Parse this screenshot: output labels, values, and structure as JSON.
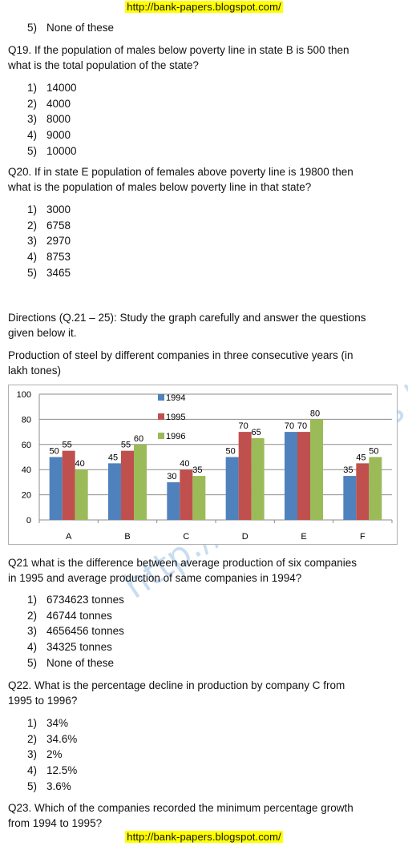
{
  "header_link": "http://bank-papers.blogspot.com/",
  "footer_link": "http://bank-papers.blogspot.com/",
  "watermark": "http://bank-papers.blogspot.com/",
  "q18_tail": {
    "num": "5)",
    "text": "None of these"
  },
  "q19": {
    "line1": "Q19. If the population of males below poverty line in state B is 500 then",
    "line2": "what is the total population of the state?",
    "options": [
      {
        "num": "1)",
        "text": "14000"
      },
      {
        "num": "2)",
        "text": "4000"
      },
      {
        "num": "3)",
        "text": "8000"
      },
      {
        "num": "4)",
        "text": "9000"
      },
      {
        "num": "5)",
        "text": "10000"
      }
    ]
  },
  "q20": {
    "line1": "Q20. If in state E population of females above poverty line is 19800 then",
    "line2": "what is the population of males below poverty line in that state?",
    "options": [
      {
        "num": "1)",
        "text": "3000"
      },
      {
        "num": "2)",
        "text": "6758"
      },
      {
        "num": "3)",
        "text": "2970"
      },
      {
        "num": "4)",
        "text": "8753"
      },
      {
        "num": "5)",
        "text": "3465"
      }
    ]
  },
  "directions": {
    "line1": "Directions (Q.21 – 25): Study the graph carefully and answer the questions",
    "line2": "given below it."
  },
  "chart_caption": {
    "line1": "Production of steel by different companies in three consecutive years (in",
    "line2": "lakh tones)"
  },
  "chart_data": {
    "type": "bar",
    "categories": [
      "A",
      "B",
      "C",
      "D",
      "E",
      "F"
    ],
    "series": [
      {
        "name": "1994",
        "values": [
          50,
          45,
          30,
          50,
          70,
          35
        ],
        "color": "#4f81bd"
      },
      {
        "name": "1995",
        "values": [
          55,
          55,
          40,
          70,
          70,
          45
        ],
        "color": "#c0504d"
      },
      {
        "name": "1996",
        "values": [
          40,
          60,
          35,
          65,
          80,
          50
        ],
        "color": "#9bbb59"
      }
    ],
    "yticks": [
      0,
      20,
      40,
      60,
      80,
      100
    ],
    "ylim": [
      0,
      100
    ],
    "grid": true,
    "legend_position": "top-center"
  },
  "q21": {
    "line1": "Q21 what is the difference between average production of six companies",
    "line2": "in 1995 and average production of same companies in 1994?",
    "options": [
      {
        "num": "1)",
        "text": "6734623 tonnes"
      },
      {
        "num": "2)",
        "text": "46744 tonnes"
      },
      {
        "num": "3)",
        "text": "4656456 tonnes"
      },
      {
        "num": "4)",
        "text": "34325 tonnes"
      },
      {
        "num": "5)",
        "text": "None of these"
      }
    ]
  },
  "q22": {
    "line1": "Q22. What is the percentage decline in production by company C from",
    "line2": "1995 to 1996?",
    "options": [
      {
        "num": "1)",
        "text": "34%"
      },
      {
        "num": "2)",
        "text": "34.6%"
      },
      {
        "num": "3)",
        "text": "2%"
      },
      {
        "num": "4)",
        "text": "12.5%"
      },
      {
        "num": "5)",
        "text": "3.6%"
      }
    ]
  },
  "q23": {
    "line1": "Q23. Which of the companies recorded the minimum percentage growth",
    "line2": "from 1994 to 1995?"
  }
}
